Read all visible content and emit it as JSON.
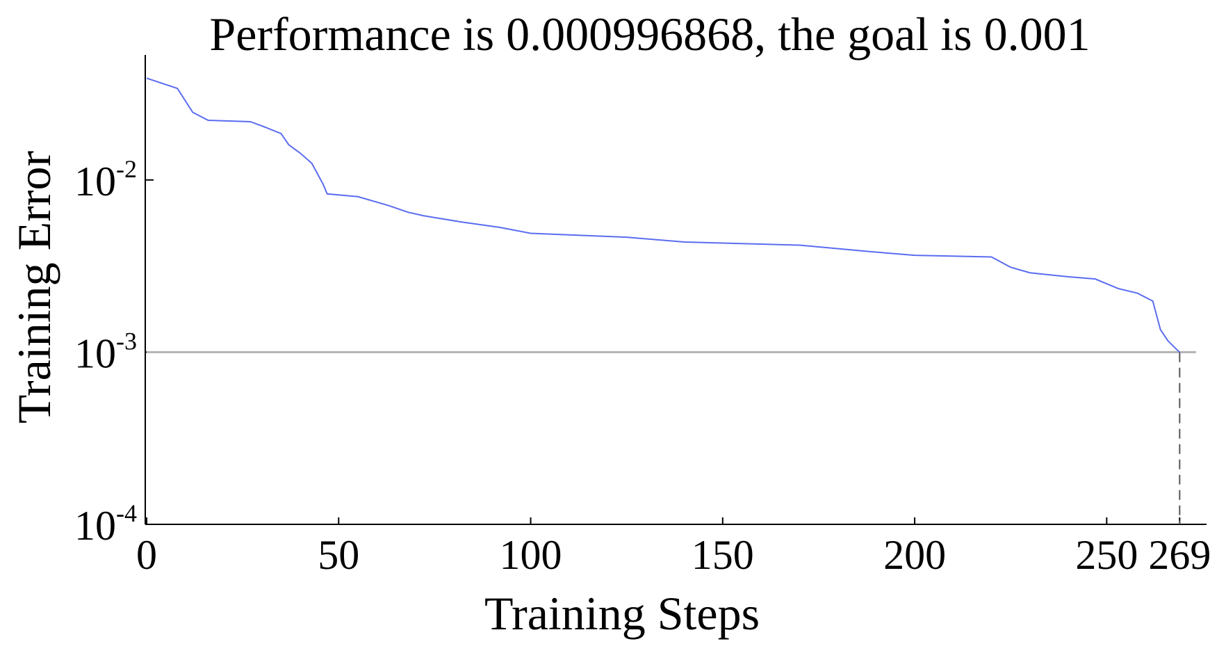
{
  "chart_data": {
    "type": "line",
    "title": "Performance is 0.000996868, the goal is 0.001",
    "x_label": "Training Steps",
    "y_label": "Training Error",
    "y_scale": "log",
    "xlim": [
      0,
      276
    ],
    "ylim": [
      0.0001,
      0.0532
    ],
    "xticks": [
      0,
      50,
      100,
      150,
      200,
      250,
      269
    ],
    "yticks": [
      {
        "value": 0.0001,
        "label": "10",
        "exponent": "-4"
      },
      {
        "value": 0.001,
        "label": "10",
        "exponent": "-3"
      },
      {
        "value": 0.01,
        "label": "10",
        "exponent": "-2"
      }
    ],
    "goal": 0.001,
    "goal_color": "#b3b3b3",
    "series": [
      {
        "color": "#5a6cf0",
        "x": [
          0,
          8,
          12,
          16,
          27,
          30,
          35,
          37,
          40,
          43,
          46,
          47,
          55,
          63,
          68,
          72,
          82,
          92,
          100,
          125,
          140,
          170,
          188,
          200,
          220,
          225,
          230,
          240,
          247,
          253,
          258,
          262,
          264,
          266,
          269
        ],
        "values": [
          0.039,
          0.034,
          0.0247,
          0.0222,
          0.0218,
          0.0206,
          0.0186,
          0.016,
          0.0143,
          0.0125,
          0.0094,
          0.0083,
          0.008,
          0.0071,
          0.0065,
          0.0062,
          0.0057,
          0.0053,
          0.0049,
          0.00465,
          0.00436,
          0.00418,
          0.00384,
          0.00365,
          0.00357,
          0.00311,
          0.00289,
          0.00274,
          0.00266,
          0.00234,
          0.0022,
          0.00198,
          0.00135,
          0.00116,
          0.000996868
        ]
      }
    ]
  }
}
